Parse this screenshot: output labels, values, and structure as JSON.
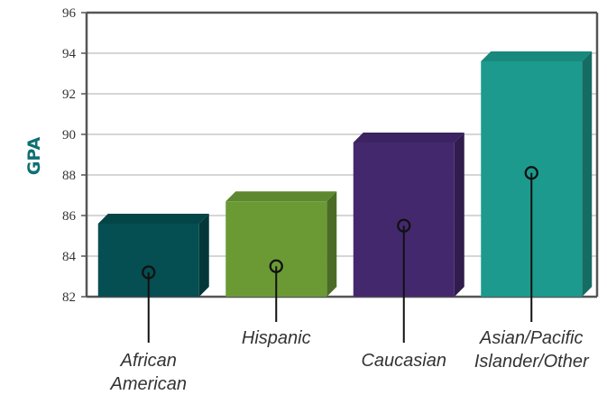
{
  "chart_data": {
    "type": "bar",
    "title": "",
    "xlabel": "",
    "ylabel": "GPA",
    "ylabel_color": "#0e6f73",
    "ylim": [
      82,
      96
    ],
    "yticks": [
      "82",
      "84",
      "86",
      "88",
      "90",
      "92",
      "94",
      "96"
    ],
    "grid": true,
    "legend": "none",
    "style": "3d-bar",
    "categories": [
      {
        "label_lines": [
          "African",
          "American"
        ],
        "value": 85.6,
        "marker": 83.2,
        "color": "#054e51"
      },
      {
        "label_lines": [
          "Hispanic"
        ],
        "value": 86.7,
        "marker": 83.5,
        "color": "#6b9a35"
      },
      {
        "label_lines": [
          "Caucasian"
        ],
        "value": 89.6,
        "marker": 85.5,
        "color": "#44286e"
      },
      {
        "label_lines": [
          "Asian/Pacific",
          "Islander/Other"
        ],
        "value": 93.6,
        "marker": 88.1,
        "color": "#1c9a8e"
      }
    ]
  }
}
